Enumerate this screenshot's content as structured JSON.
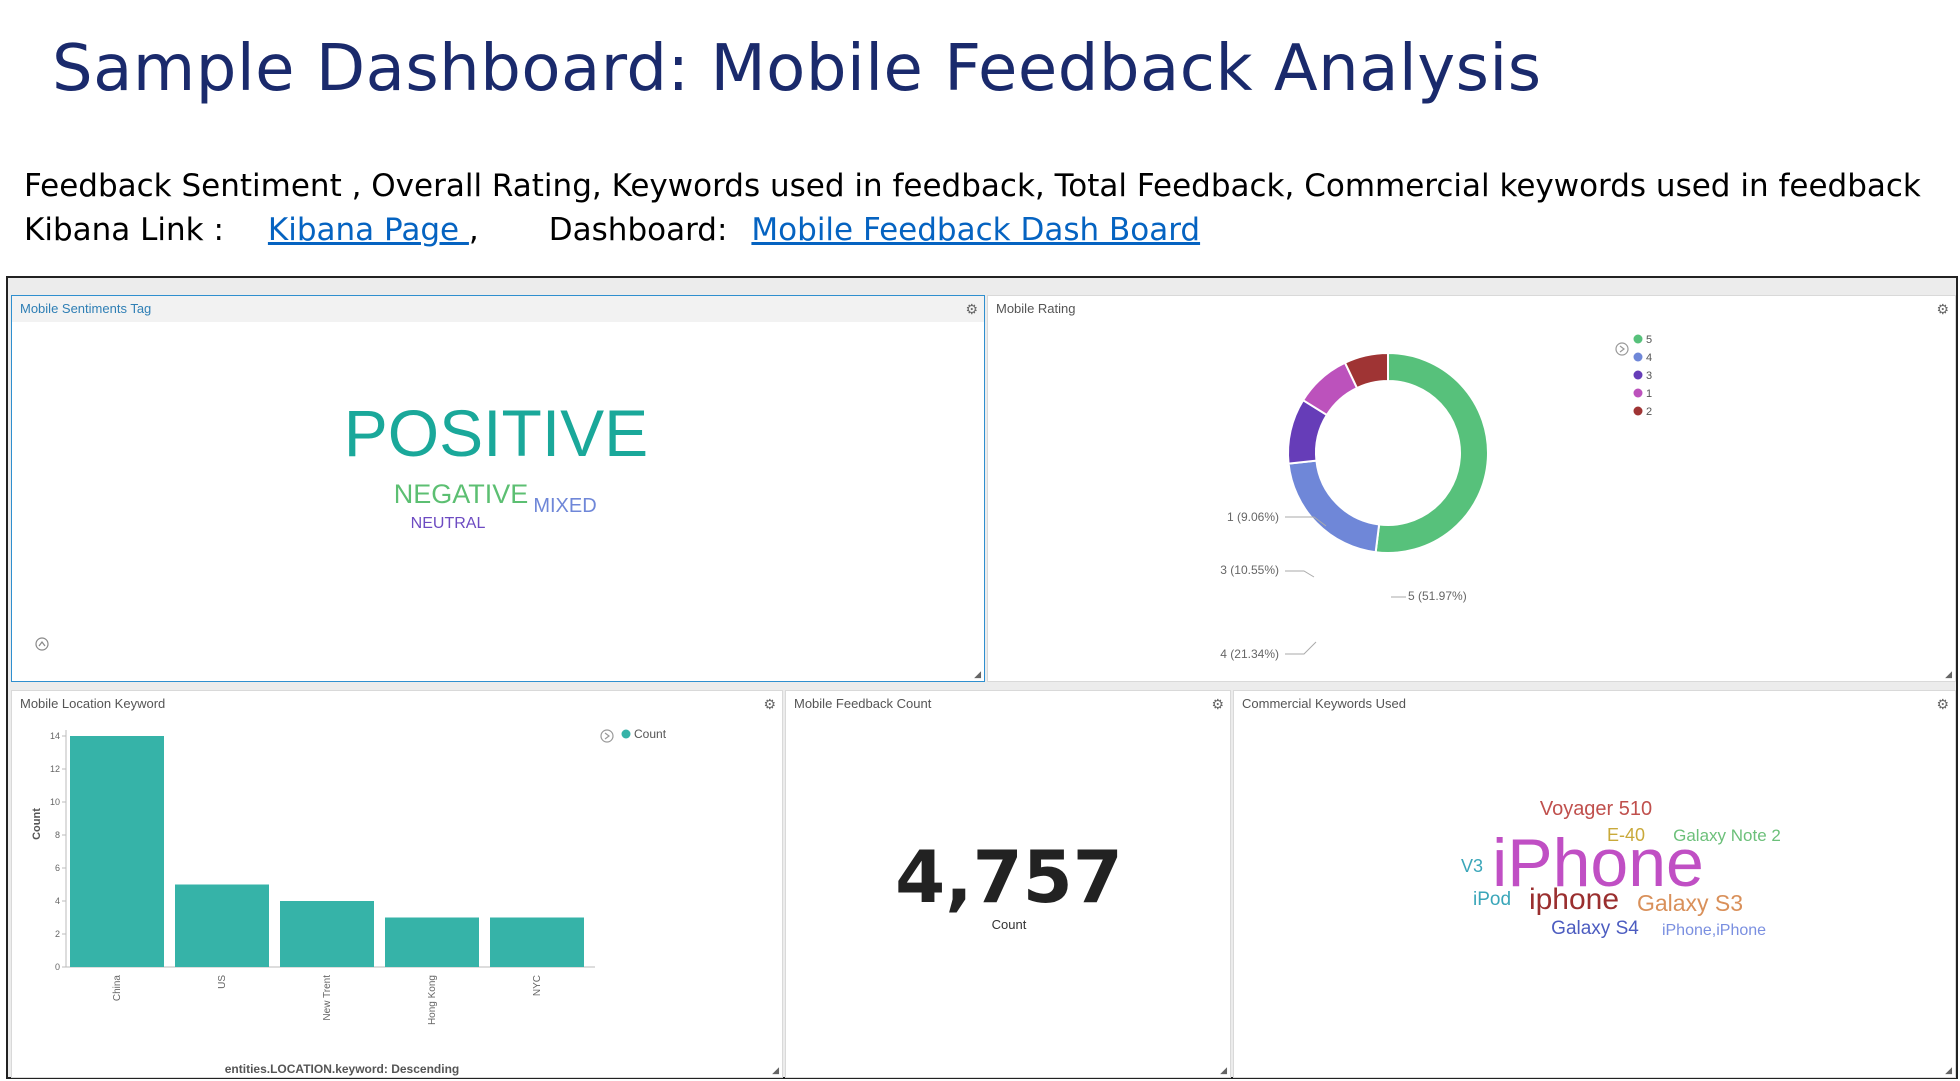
{
  "slide": {
    "title": "Sample Dashboard:  Mobile Feedback Analysis",
    "subtitle": "Feedback Sentiment , Overall Rating, Keywords used in feedback, Total Feedback, Commercial keywords used in feedback",
    "kibana_label": "Kibana Link :",
    "kibana_link": "Kibana Page ",
    "separator": ",",
    "dashboard_label": "Dashboard:",
    "dashboard_link": "Mobile Feedback Dash Board"
  },
  "panels": {
    "sentiment": {
      "title": "Mobile Sentiments Tag",
      "words": [
        {
          "text": "POSITIVE",
          "color": "#1aa89a"
        },
        {
          "text": "NEGATIVE",
          "color": "#5cbf72"
        },
        {
          "text": "MIXED",
          "color": "#6f87d8"
        },
        {
          "text": "NEUTRAL",
          "color": "#6d4bc2"
        }
      ]
    },
    "rating": {
      "title": "Mobile Rating",
      "legend": [
        "5",
        "4",
        "3",
        "1",
        "2"
      ],
      "slice_labels": [
        "5 (51.97%)",
        "4 (21.34%)",
        "3 (10.55%)",
        "1 (9.06%)"
      ]
    },
    "location": {
      "title": "Mobile Location Keyword",
      "legend": "Count",
      "xlabel": "entities.LOCATION.keyword: Descending",
      "ylabel": "Count"
    },
    "count": {
      "title": "Mobile Feedback Count",
      "value": "4,757",
      "label": "Count"
    },
    "commercial": {
      "title": "Commercial Keywords Used",
      "words": [
        {
          "text": "Voyager 510",
          "color": "#c0504d"
        },
        {
          "text": "E-40",
          "color": "#c9a93a"
        },
        {
          "text": "Galaxy Note 2",
          "color": "#6cc07a"
        },
        {
          "text": "V3",
          "color": "#3aa6b9"
        },
        {
          "text": "iPhone",
          "color": "#c04fc4"
        },
        {
          "text": "iPod",
          "color": "#3aa6b9"
        },
        {
          "text": "iphone",
          "color": "#9a2f2f"
        },
        {
          "text": "Galaxy S3",
          "color": "#d9905a"
        },
        {
          "text": "Galaxy S4",
          "color": "#4c5cc0"
        },
        {
          "text": "iPhone,iPhone",
          "color": "#7a8fe0"
        }
      ]
    }
  },
  "chart_data": [
    {
      "type": "pie",
      "title": "Mobile Rating",
      "categories": [
        "5",
        "4",
        "3",
        "1",
        "2"
      ],
      "values": [
        51.97,
        21.34,
        10.55,
        9.06,
        7.08
      ],
      "colors": [
        "#57c17b",
        "#6f87d8",
        "#663db8",
        "#bc52bc",
        "#9f3434"
      ],
      "donut": true
    },
    {
      "type": "bar",
      "title": "Mobile Location Keyword",
      "categories": [
        "China",
        "US",
        "New Trent",
        "Hong Kong",
        "NYC"
      ],
      "values": [
        14,
        5,
        4,
        3,
        3
      ],
      "xlabel": "entities.LOCATION.keyword: Descending",
      "ylabel": "Count",
      "ylim": [
        0,
        14
      ],
      "yticks": [
        0,
        2,
        4,
        6,
        8,
        10,
        12,
        14
      ],
      "color": "#36b3a8",
      "series": [
        {
          "name": "Count",
          "values": [
            14,
            5,
            4,
            3,
            3
          ]
        }
      ]
    }
  ]
}
